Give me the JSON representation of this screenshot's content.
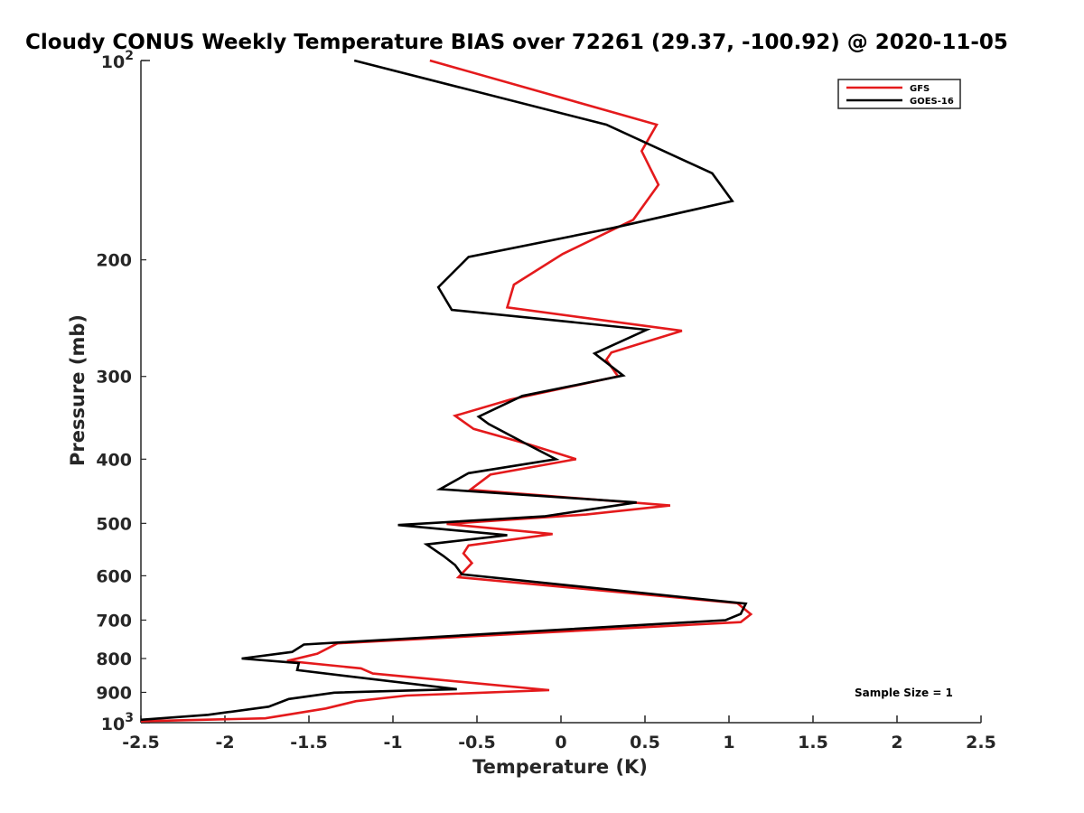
{
  "chart_data": {
    "type": "line",
    "title": "Cloudy CONUS Weekly Temperature BIAS over 72261 (29.37, -100.92) @ 2020-11-05",
    "xlabel": "Temperature (K)",
    "ylabel": "Pressure (mb)",
    "xlim": [
      -2.5,
      2.5
    ],
    "ylim": [
      100,
      1000
    ],
    "yscale": "log",
    "y_reversed": true,
    "grid": false,
    "x_ticks": [
      -2.5,
      -2,
      -1.5,
      -1,
      -0.5,
      0,
      0.5,
      1,
      1.5,
      2,
      2.5
    ],
    "x_tick_labels": [
      "-2.5",
      "-2",
      "-1.5",
      "-1",
      "-0.5",
      "0",
      "0.5",
      "1",
      "1.5",
      "2",
      "2.5"
    ],
    "y_ticks": [
      200,
      300,
      400,
      500,
      600,
      700,
      800,
      900
    ],
    "y_tick_labels": [
      "200",
      "300",
      "400",
      "500",
      "600",
      "700",
      "800",
      "900"
    ],
    "y_decade_ticks": [
      {
        "value": 100,
        "base": "10",
        "exp": "2"
      },
      {
        "value": 1000,
        "base": "10",
        "exp": "3"
      }
    ],
    "legend_position": "top-right",
    "annotation": "Sample Size = 1",
    "series": [
      {
        "name": "GFS",
        "color": "#e41a1c",
        "points": [
          [
            -0.78,
            100
          ],
          [
            0.57,
            125
          ],
          [
            0.48,
            137
          ],
          [
            0.58,
            154
          ],
          [
            0.43,
            174
          ],
          [
            0.01,
            196
          ],
          [
            -0.28,
            218
          ],
          [
            -0.32,
            236
          ],
          [
            0.72,
            256
          ],
          [
            0.3,
            276
          ],
          [
            0.27,
            283
          ],
          [
            0.34,
            300
          ],
          [
            -0.3,
            325
          ],
          [
            -0.63,
            344
          ],
          [
            -0.52,
            360
          ],
          [
            -0.19,
            380
          ],
          [
            0.09,
            400
          ],
          [
            -0.42,
            422
          ],
          [
            -0.54,
            445
          ],
          [
            0.65,
            470
          ],
          [
            0.15,
            485
          ],
          [
            -0.68,
            501
          ],
          [
            -0.05,
            519
          ],
          [
            -0.55,
            540
          ],
          [
            -0.58,
            555
          ],
          [
            -0.53,
            574
          ],
          [
            -0.61,
            603
          ],
          [
            1.05,
            660
          ],
          [
            1.13,
            686
          ],
          [
            1.07,
            705
          ],
          [
            -1.33,
            759
          ],
          [
            -1.45,
            787
          ],
          [
            -1.63,
            807
          ],
          [
            -1.19,
            828
          ],
          [
            -1.12,
            843
          ],
          [
            -0.07,
            893
          ],
          [
            -0.92,
            910
          ],
          [
            -1.22,
            928
          ],
          [
            -1.4,
            952
          ],
          [
            -1.76,
            985
          ],
          [
            -2.5,
            995
          ]
        ]
      },
      {
        "name": "GOES-16",
        "color": "#000000",
        "points": [
          [
            -1.23,
            100
          ],
          [
            0.27,
            125
          ],
          [
            0.9,
            148
          ],
          [
            1.02,
            163
          ],
          [
            0.31,
            179
          ],
          [
            -0.55,
            198
          ],
          [
            -0.73,
            220
          ],
          [
            -0.65,
            238
          ],
          [
            0.51,
            255
          ],
          [
            0.2,
            277
          ],
          [
            0.37,
            299
          ],
          [
            -0.23,
            321
          ],
          [
            -0.49,
            345
          ],
          [
            -0.43,
            354
          ],
          [
            -0.2,
            380
          ],
          [
            -0.03,
            400
          ],
          [
            -0.55,
            420
          ],
          [
            -0.72,
            444
          ],
          [
            0.45,
            465
          ],
          [
            -0.1,
            488
          ],
          [
            -0.97,
            503
          ],
          [
            -0.32,
            521
          ],
          [
            -0.8,
            538
          ],
          [
            -0.7,
            560
          ],
          [
            -0.63,
            578
          ],
          [
            -0.59,
            597
          ],
          [
            1.1,
            661
          ],
          [
            1.07,
            685
          ],
          [
            0.98,
            700
          ],
          [
            -1.53,
            762
          ],
          [
            -1.6,
            782
          ],
          [
            -1.9,
            800
          ],
          [
            -1.56,
            813
          ],
          [
            -1.57,
            833
          ],
          [
            -0.62,
            890
          ],
          [
            -1.35,
            901
          ],
          [
            -1.62,
            921
          ],
          [
            -1.74,
            946
          ],
          [
            -2.1,
            973
          ],
          [
            -2.5,
            990
          ]
        ]
      }
    ]
  }
}
